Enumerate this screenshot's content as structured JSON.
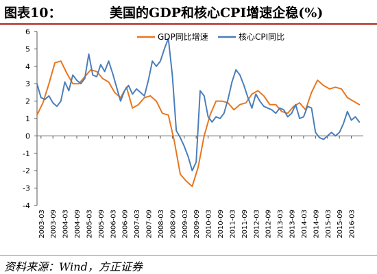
{
  "header": {
    "figure_label": "图表10：",
    "title": "美国的GDP和核心CPI增速企稳(%)"
  },
  "footer": {
    "source": "资料来源：Wind，方正证券"
  },
  "colors": {
    "gdp": "#e8761f",
    "cpi": "#4a7ebb",
    "title_rule": "#b02418"
  },
  "chart_data": {
    "type": "line",
    "title": "美国的GDP和核心CPI增速企稳(%)",
    "xlabel": "",
    "ylabel": "",
    "ylim": [
      -4,
      6
    ],
    "yticks": [
      "6",
      "5",
      "4",
      "3",
      "2",
      "1",
      "0",
      "-1",
      "-2",
      "-3",
      "-4"
    ],
    "grid": false,
    "legend": "top-center",
    "x_ticks": [
      "2003-03",
      "2003-09",
      "2004-03",
      "2004-09",
      "2005-03",
      "2005-09",
      "2006-03",
      "2006-09",
      "2007-03",
      "2007-09",
      "2008-03",
      "2008-09",
      "2009-03",
      "2009-09",
      "2010-03",
      "2010-09",
      "2011-03",
      "2011-09",
      "2012-03",
      "2012-09",
      "2013-03",
      "2013-09",
      "2014-03",
      "2014-09",
      "2015-03",
      "2015-09",
      "2016-03"
    ],
    "series": [
      {
        "name": "GDP同比增速",
        "color": "#e8761f",
        "x": [
          "2003-01",
          "2003-04",
          "2003-07",
          "2003-10",
          "2004-01",
          "2004-04",
          "2004-07",
          "2004-10",
          "2005-01",
          "2005-04",
          "2005-07",
          "2005-10",
          "2006-01",
          "2006-04",
          "2006-07",
          "2006-10",
          "2007-01",
          "2007-04",
          "2007-07",
          "2007-10",
          "2008-01",
          "2008-04",
          "2008-07",
          "2008-10",
          "2009-01",
          "2009-04",
          "2009-07",
          "2009-10",
          "2010-01",
          "2010-04",
          "2010-07",
          "2010-10",
          "2011-01",
          "2011-04",
          "2011-07",
          "2011-10",
          "2012-01",
          "2012-04",
          "2012-07",
          "2012-10",
          "2013-01",
          "2013-04",
          "2013-07",
          "2013-10",
          "2014-01",
          "2014-04",
          "2014-07",
          "2014-10",
          "2015-01",
          "2015-04",
          "2015-07",
          "2015-10",
          "2016-01",
          "2016-04",
          "2016-07"
        ],
        "values": [
          1.2,
          1.9,
          3.0,
          4.2,
          4.3,
          3.6,
          3.0,
          3.0,
          3.4,
          3.8,
          3.7,
          3.3,
          3.1,
          2.5,
          2.2,
          2.8,
          1.6,
          1.8,
          2.2,
          2.3,
          2.0,
          1.3,
          1.2,
          -0.3,
          -2.2,
          -2.6,
          -2.9,
          -1.8,
          0.0,
          1.2,
          2.0,
          2.0,
          1.9,
          1.5,
          1.8,
          1.9,
          2.4,
          2.6,
          2.3,
          1.8,
          1.8,
          1.4,
          1.3,
          1.7,
          1.9,
          1.5,
          2.5,
          3.2,
          2.9,
          2.7,
          2.8,
          2.7,
          2.2,
          2.0,
          1.8
        ]
      },
      {
        "name": "核心CPI同比",
        "color": "#4a7ebb",
        "x": [
          "2003-01",
          "2003-03",
          "2003-05",
          "2003-07",
          "2003-09",
          "2003-11",
          "2004-01",
          "2004-03",
          "2004-05",
          "2004-07",
          "2004-09",
          "2004-11",
          "2005-01",
          "2005-03",
          "2005-05",
          "2005-07",
          "2005-09",
          "2005-11",
          "2006-01",
          "2006-03",
          "2006-05",
          "2006-07",
          "2006-09",
          "2006-11",
          "2007-01",
          "2007-03",
          "2007-05",
          "2007-07",
          "2007-09",
          "2007-11",
          "2008-01",
          "2008-03",
          "2008-05",
          "2008-07",
          "2008-09",
          "2008-11",
          "2009-01",
          "2009-03",
          "2009-05",
          "2009-07",
          "2009-09",
          "2009-11",
          "2010-01",
          "2010-03",
          "2010-05",
          "2010-07",
          "2010-09",
          "2010-11",
          "2011-01",
          "2011-03",
          "2011-05",
          "2011-07",
          "2011-09",
          "2011-11",
          "2012-01",
          "2012-03",
          "2012-05",
          "2012-07",
          "2012-09",
          "2012-11",
          "2013-01",
          "2013-03",
          "2013-05",
          "2013-07",
          "2013-09",
          "2013-11",
          "2014-01",
          "2014-03",
          "2014-05",
          "2014-07",
          "2014-09",
          "2014-11",
          "2015-01",
          "2015-03",
          "2015-05",
          "2015-07",
          "2015-09",
          "2015-11",
          "2016-01",
          "2016-03",
          "2016-05",
          "2016-07"
        ],
        "values": [
          3.0,
          2.2,
          2.1,
          2.3,
          1.9,
          1.7,
          2.0,
          3.1,
          2.6,
          3.5,
          3.2,
          3.0,
          3.3,
          4.7,
          3.5,
          3.4,
          4.1,
          3.7,
          4.3,
          3.6,
          2.8,
          2.0,
          2.6,
          2.9,
          2.4,
          2.7,
          2.5,
          2.3,
          3.2,
          4.3,
          4.0,
          4.3,
          5.0,
          5.6,
          3.5,
          0.3,
          -0.1,
          -0.6,
          -1.2,
          -2.0,
          -1.5,
          2.6,
          2.3,
          1.1,
          0.8,
          1.1,
          1.0,
          1.3,
          2.1,
          3.1,
          3.8,
          3.5,
          2.9,
          2.2,
          1.6,
          2.4,
          2.0,
          1.7,
          1.6,
          1.5,
          1.3,
          1.6,
          1.5,
          1.1,
          1.3,
          1.8,
          1.0,
          1.1,
          1.7,
          1.6,
          0.2,
          -0.1,
          -0.2,
          0.0,
          0.2,
          0.0,
          0.2,
          0.7,
          1.4,
          0.9,
          1.1,
          0.8
        ]
      }
    ]
  }
}
